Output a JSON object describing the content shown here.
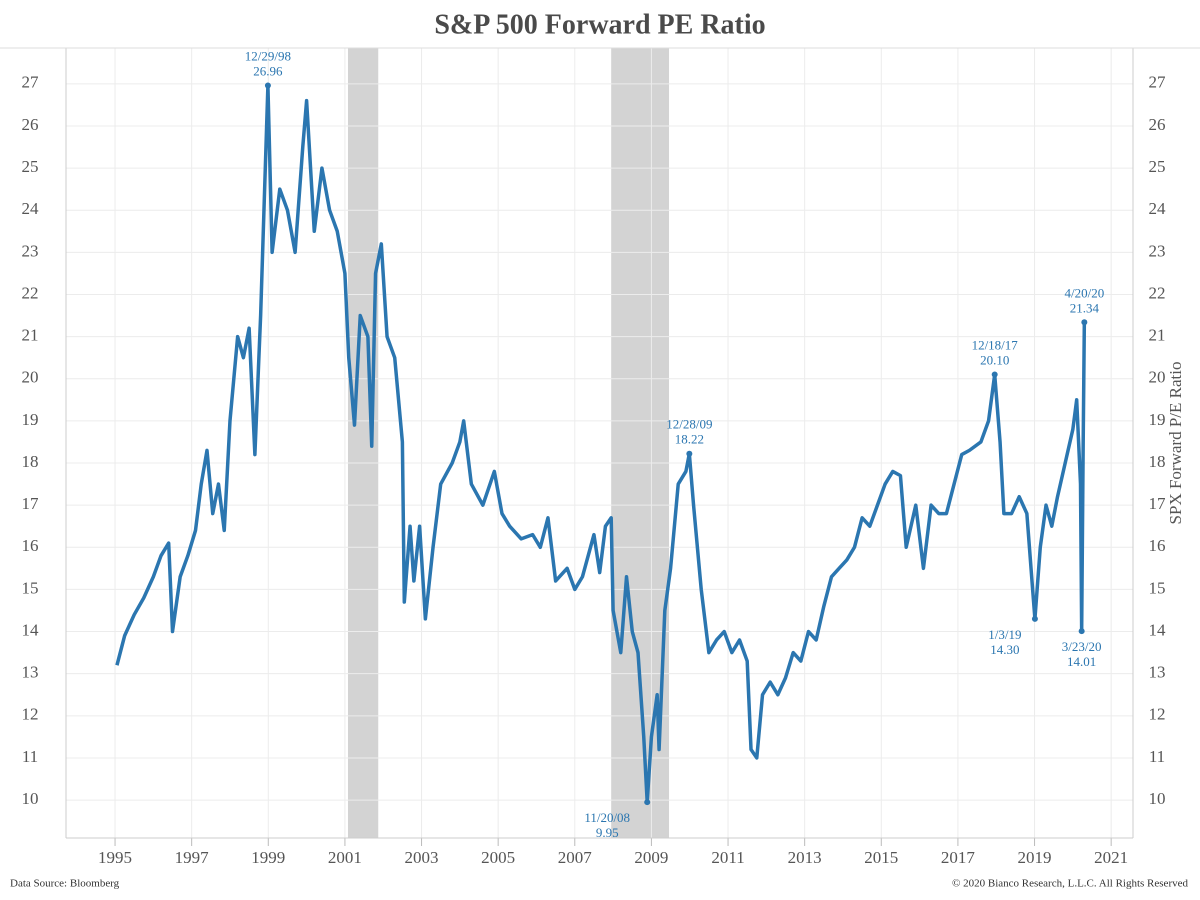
{
  "chart_data": {
    "type": "line",
    "title": "S&P 500 Forward PE Ratio",
    "y2_label": "SPX Forward P/E Ratio",
    "source": "Data Source: Bloomberg",
    "copyright": "© 2020 Bianco Research, L.L.C. All Rights Reserved",
    "xlim": [
      1993.72,
      2021.57
    ],
    "xticks": [
      1995,
      1997,
      1999,
      2001,
      2003,
      2005,
      2007,
      2009,
      2011,
      2013,
      2015,
      2017,
      2019,
      2021
    ],
    "ylim": [
      9.1,
      27.85
    ],
    "yticks": [
      10,
      11,
      12,
      13,
      14,
      15,
      16,
      17,
      18,
      19,
      20,
      21,
      22,
      23,
      24,
      25,
      26,
      27
    ],
    "y2lim": [
      9.1,
      27.85
    ],
    "y2ticks": [
      10,
      11,
      12,
      13,
      14,
      15,
      16,
      17,
      18,
      19,
      20,
      21,
      22,
      23,
      24,
      25,
      26,
      27
    ],
    "grid": true,
    "shaded_regions": [
      [
        2001.08,
        2001.87
      ],
      [
        2007.95,
        2009.46
      ]
    ],
    "shade_color": "#d3d3d3",
    "x": [
      1995.05,
      1995.25,
      1995.5,
      1995.75,
      1996.0,
      1996.2,
      1996.4,
      1996.5,
      1996.7,
      1996.9,
      1997.1,
      1997.25,
      1997.4,
      1997.55,
      1997.7,
      1997.85,
      1998.0,
      1998.2,
      1998.35,
      1998.5,
      1998.65,
      1998.8,
      1998.99,
      1999.1,
      1999.3,
      1999.5,
      1999.7,
      1999.9,
      2000.0,
      2000.2,
      2000.4,
      2000.6,
      2000.8,
      2001.0,
      2001.1,
      2001.25,
      2001.4,
      2001.6,
      2001.7,
      2001.8,
      2001.95,
      2002.1,
      2002.3,
      2002.5,
      2002.55,
      2002.7,
      2002.8,
      2002.95,
      2003.1,
      2003.3,
      2003.5,
      2003.8,
      2004.0,
      2004.1,
      2004.3,
      2004.6,
      2004.9,
      2005.1,
      2005.3,
      2005.6,
      2005.9,
      2006.1,
      2006.3,
      2006.5,
      2006.8,
      2007.0,
      2007.2,
      2007.5,
      2007.65,
      2007.8,
      2007.95,
      2008.0,
      2008.2,
      2008.35,
      2008.5,
      2008.65,
      2008.8,
      2008.89,
      2009.0,
      2009.15,
      2009.2,
      2009.35,
      2009.5,
      2009.7,
      2009.9,
      2009.99,
      2010.1,
      2010.3,
      2010.5,
      2010.7,
      2010.9,
      2011.1,
      2011.3,
      2011.5,
      2011.6,
      2011.75,
      2011.9,
      2012.1,
      2012.3,
      2012.5,
      2012.7,
      2012.9,
      2013.1,
      2013.3,
      2013.5,
      2013.7,
      2013.9,
      2014.1,
      2014.3,
      2014.5,
      2014.7,
      2014.9,
      2015.1,
      2015.3,
      2015.5,
      2015.65,
      2015.9,
      2016.1,
      2016.3,
      2016.5,
      2016.7,
      2016.9,
      2017.1,
      2017.3,
      2017.6,
      2017.8,
      2017.96,
      2018.1,
      2018.2,
      2018.4,
      2018.6,
      2018.8,
      2018.95,
      2019.01,
      2019.15,
      2019.3,
      2019.45,
      2019.6,
      2019.8,
      2020.0,
      2020.1,
      2020.2,
      2020.23,
      2020.27,
      2020.3
    ],
    "series": [
      {
        "name": "SPX Forward P/E Ratio",
        "color": "#2b76b0",
        "values": [
          13.2,
          13.9,
          14.4,
          14.8,
          15.3,
          15.8,
          16.1,
          14.0,
          15.3,
          15.8,
          16.4,
          17.5,
          18.3,
          16.8,
          17.5,
          16.4,
          19.0,
          21.0,
          20.5,
          21.2,
          18.2,
          21.5,
          26.96,
          23.0,
          24.5,
          24.0,
          23.0,
          25.5,
          26.6,
          23.5,
          25.0,
          24.0,
          23.5,
          22.5,
          20.5,
          18.9,
          21.5,
          21.0,
          18.4,
          22.5,
          23.2,
          21.0,
          20.5,
          18.5,
          14.7,
          16.5,
          15.2,
          16.5,
          14.3,
          16.0,
          17.5,
          18.0,
          18.5,
          19.0,
          17.5,
          17.0,
          17.8,
          16.8,
          16.5,
          16.2,
          16.3,
          16.0,
          16.7,
          15.2,
          15.5,
          15.0,
          15.3,
          16.3,
          15.4,
          16.5,
          16.7,
          14.5,
          13.5,
          15.3,
          14.0,
          13.5,
          11.5,
          9.95,
          11.5,
          12.5,
          11.2,
          14.5,
          15.5,
          17.5,
          17.8,
          18.22,
          17.0,
          15.0,
          13.5,
          13.8,
          14.0,
          13.5,
          13.8,
          13.3,
          11.2,
          11.0,
          12.5,
          12.8,
          12.5,
          12.9,
          13.5,
          13.3,
          14.0,
          13.8,
          14.6,
          15.3,
          15.5,
          15.7,
          16.0,
          16.7,
          16.5,
          17.0,
          17.5,
          17.8,
          17.7,
          16.0,
          17.0,
          15.5,
          17.0,
          16.8,
          16.8,
          17.5,
          18.2,
          18.3,
          18.5,
          19.0,
          20.1,
          18.5,
          16.8,
          16.8,
          17.2,
          16.8,
          15.0,
          14.3,
          16.0,
          17.0,
          16.5,
          17.2,
          18.0,
          18.8,
          19.5,
          17.5,
          14.01,
          18.5,
          21.34
        ]
      }
    ],
    "annotations": [
      {
        "date": "12/29/98",
        "x": 1998.99,
        "y": 26.96,
        "y_label": "26.96"
      },
      {
        "date": "11/20/08",
        "x": 2008.89,
        "y": 9.95,
        "y_label": "9.95"
      },
      {
        "date": "12/28/09",
        "x": 2009.99,
        "y": 18.22,
        "y_label": "18.22"
      },
      {
        "date": "12/18/17",
        "x": 2017.96,
        "y": 20.1,
        "y_label": "20.10"
      },
      {
        "date": "1/3/19",
        "x": 2019.01,
        "y": 14.3,
        "y_label": "14.30"
      },
      {
        "date": "3/23/20",
        "x": 2020.23,
        "y": 14.01,
        "y_label": "14.01"
      },
      {
        "date": "4/20/20",
        "x": 2020.3,
        "y": 21.34,
        "y_label": "21.34"
      }
    ]
  }
}
